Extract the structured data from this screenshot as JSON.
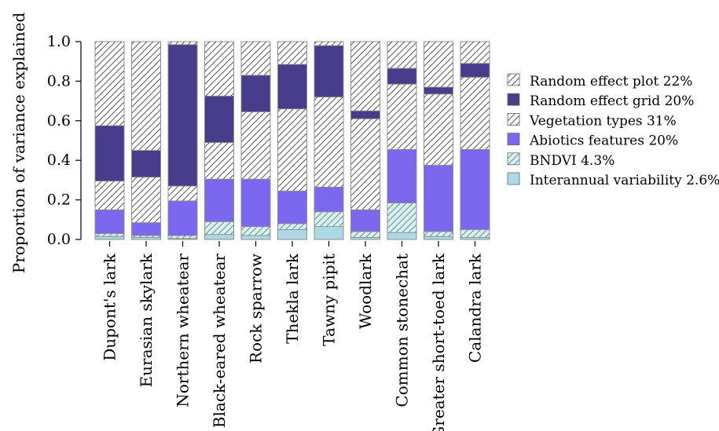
{
  "chart_data": {
    "type": "bar",
    "stacked": true,
    "title": "",
    "xlabel": "",
    "ylabel": "Proportion of variance explained",
    "ylim": [
      0,
      1.0
    ],
    "yticks": [
      "0.0",
      "0.2",
      "0.4",
      "0.6",
      "0.8",
      "1.0"
    ],
    "categories": [
      "Dupont's lark",
      "Eurasian skylark",
      "Northern wheatear",
      "Black-eared wheatear",
      "Rock sparrow",
      "Thekla lark",
      "Tawny pipit",
      "Woodlark",
      "Common stonechat",
      "Greater short-toed lark",
      "Calandra lark"
    ],
    "legend_position": "right",
    "series": [
      {
        "name": "Interannual variability 2.6%",
        "color": "#add8e6",
        "pattern": "solid",
        "values": [
          0.015,
          0.01,
          0.005,
          0.025,
          0.02,
          0.05,
          0.065,
          0.01,
          0.035,
          0.015,
          0.01
        ]
      },
      {
        "name": "BNDVI 4.3%",
        "color": "#d9f0f0",
        "pattern": "hatch",
        "values": [
          0.015,
          0.01,
          0.015,
          0.065,
          0.045,
          0.03,
          0.075,
          0.03,
          0.15,
          0.025,
          0.04
        ]
      },
      {
        "name": "Abiotics features 20%",
        "color": "#7b68ee",
        "pattern": "solid",
        "values": [
          0.12,
          0.065,
          0.175,
          0.215,
          0.24,
          0.165,
          0.125,
          0.11,
          0.27,
          0.335,
          0.405
        ]
      },
      {
        "name": "Vegetation types 31%",
        "color": "#ffffff",
        "pattern": "hatch",
        "values": [
          0.145,
          0.23,
          0.075,
          0.185,
          0.34,
          0.415,
          0.455,
          0.46,
          0.33,
          0.36,
          0.365
        ]
      },
      {
        "name": "Random effect grid 20%",
        "color": "#483d8b",
        "pattern": "solid",
        "values": [
          0.28,
          0.135,
          0.715,
          0.235,
          0.185,
          0.225,
          0.26,
          0.04,
          0.08,
          0.035,
          0.07
        ]
      },
      {
        "name": "Random effect plot 22%",
        "color": "#ffffff",
        "pattern": "hatch",
        "values": [
          0.425,
          0.55,
          0.015,
          0.275,
          0.17,
          0.115,
          0.02,
          0.35,
          0.135,
          0.23,
          0.11
        ]
      }
    ]
  }
}
